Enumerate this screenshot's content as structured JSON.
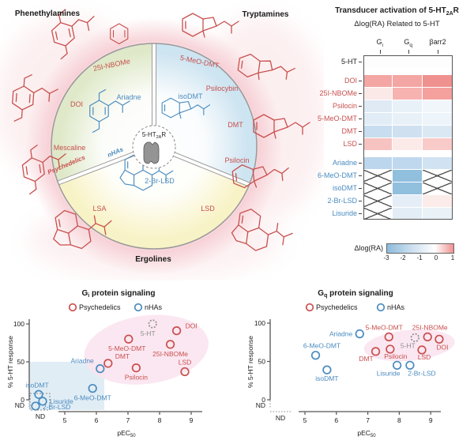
{
  "colors": {
    "psychedelic_red": "#c8504e",
    "nha_blue": "#4a8bbf",
    "reference_gray": "#8f8f8f",
    "sector_green": "#dfe9c9",
    "sector_blue": "#cde4f1",
    "sector_yellow": "#f8f3c6",
    "glow_pink": "#f6cdd3",
    "blob_pink": "#fae3ee",
    "region_blue": "#d9e9f3",
    "heat_negative": "#8cbbdd",
    "heat_positive": "#f0908f"
  },
  "diagram": {
    "headers": {
      "phenethylamines": "Phenethylamines",
      "tryptamines": "Tryptamines",
      "ergolines": "Ergolines"
    },
    "receptor": {
      "prefix": "5-HT",
      "sub": "2A",
      "suffix": "R"
    },
    "rim_labels": {
      "nbome": "25I-NBOMe",
      "doi": "DOI",
      "mescaline": "Mescaline",
      "meodmt": "5-MeO-DMT",
      "psilocybin": "Psilocybin",
      "dmt": "DMT",
      "psilocin": "Psilocin",
      "lsa": "LSA",
      "lsd": "LSD"
    },
    "inner_labels": {
      "ariadne": "Ariadne",
      "isodmt": "isoDMT",
      "brlsd": "2-Br-LSD"
    },
    "divider_labels": {
      "psychedelics": "Psychedelics",
      "nhas": "nHAs"
    }
  },
  "heatmap": {
    "title": {
      "prefix": "Transducer activation of 5-HT",
      "sub": "2A",
      "suffix": "R"
    },
    "subtitle": "Δlog(RA) Related to 5-HT",
    "colorbar_label": "Δlog(RA)"
  },
  "chart_data": [
    {
      "type": "heatmap",
      "title": "Transducer activation of 5-HT2AR",
      "subtitle": "Δlog(RA) Related to 5-HT",
      "columns": [
        {
          "label": "G",
          "sub": "i"
        },
        {
          "label": "G",
          "sub": "q"
        },
        {
          "label": "βarr2",
          "sub": ""
        }
      ],
      "value_note": "null value = not determined (crossed-out cell)",
      "rows": [
        {
          "label": "5-HT",
          "group": "reference",
          "gap_before": false,
          "values": [
            0,
            0,
            0
          ],
          "colors": [
            "#fdfdfd",
            "#fdfdfd",
            "#fdfdfd"
          ]
        },
        {
          "label": "DOI",
          "group": "psychedelic",
          "gap_before": true,
          "values": [
            0.65,
            0.65,
            0.85
          ],
          "colors": [
            "#f3a6a3",
            "#f3a6a3",
            "#ef918e"
          ]
        },
        {
          "label": "25I-NBOMe",
          "group": "psychedelic",
          "gap_before": false,
          "values": [
            0.15,
            0.5,
            0.6
          ],
          "colors": [
            "#fbe9e7",
            "#f6b3b0",
            "#f4a19e"
          ]
        },
        {
          "label": "Psilocin",
          "group": "psychedelic",
          "gap_before": false,
          "values": [
            -0.6,
            -0.4,
            -0.25
          ],
          "colors": [
            "#dfeaf5",
            "#e9f1f8",
            "#f1f6fb"
          ]
        },
        {
          "label": "5-MeO-DMT",
          "group": "psychedelic",
          "gap_before": false,
          "values": [
            -0.55,
            -0.4,
            -0.3
          ],
          "colors": [
            "#e1ecf6",
            "#e9f1f8",
            "#edf4fa"
          ]
        },
        {
          "label": "DMT",
          "group": "psychedelic",
          "gap_before": false,
          "values": [
            -1.05,
            -0.95,
            -0.75
          ],
          "colors": [
            "#c8ddef",
            "#cfe1f1",
            "#dae8f4"
          ]
        },
        {
          "label": "LSD",
          "group": "psychedelic",
          "gap_before": false,
          "values": [
            0.4,
            0.1,
            0.35
          ],
          "colors": [
            "#f7c3c1",
            "#fbeae8",
            "#f8cbc9"
          ]
        },
        {
          "label": "Ariadne",
          "group": "nha",
          "gap_before": true,
          "values": [
            -1.25,
            -1.2,
            -0.85
          ],
          "colors": [
            "#bcd6ed",
            "#c0d8ee",
            "#d1e3f2"
          ]
        },
        {
          "label": "6-MeO-DMT",
          "group": "nha",
          "gap_before": false,
          "values": [
            null,
            -2.0,
            null
          ],
          "colors": [
            null,
            "#91bfde",
            null
          ]
        },
        {
          "label": "isoDMT",
          "group": "nha",
          "gap_before": false,
          "values": [
            null,
            -2.0,
            null
          ],
          "colors": [
            null,
            "#91bfde",
            null
          ]
        },
        {
          "label": "2-Br-LSD",
          "group": "nha",
          "gap_before": false,
          "values": [
            null,
            -0.45,
            0.1
          ],
          "colors": [
            null,
            "#e5eef7",
            "#fbecea"
          ]
        },
        {
          "label": "Lisuride",
          "group": "nha",
          "gap_before": false,
          "values": [
            null,
            -0.5,
            -0.3
          ],
          "colors": [
            null,
            "#e3edf6",
            "#eaf2f8"
          ]
        }
      ],
      "colorbar": {
        "label": "Δlog(RA)",
        "min": -3,
        "max": 1,
        "ticks": [
          "-3",
          "-2",
          "-1",
          "0",
          "1"
        ]
      }
    },
    {
      "type": "scatter",
      "id": "gi",
      "title": {
        "base": "G",
        "sub": "i",
        "rest": " protein signaling"
      },
      "xlabel": {
        "base": "pEC",
        "sub": "50"
      },
      "ylabel": "% 5-HT response",
      "x_ticks": [
        5,
        6,
        7,
        8,
        9
      ],
      "y_ticks": [
        0,
        50,
        100
      ],
      "x_nd_label": "ND",
      "y_nd_label": "ND",
      "legend": [
        {
          "label": "Psychedelics",
          "group": "psychedelic"
        },
        {
          "label": "nHAs",
          "group": "nha"
        }
      ],
      "regions": {
        "psychedelic_blob": {
          "cx": 7.58,
          "cy": 66,
          "rx": 1.98,
          "ry": 45,
          "rot": -8
        },
        "nha_box": {
          "x_max": 6.25,
          "y_max": 50
        }
      },
      "points": [
        {
          "label": "5-HT",
          "group": "reference",
          "x": 7.78,
          "y": 100,
          "lx": -6,
          "ly": 15,
          "anchor": "middle"
        },
        {
          "label": "DOI",
          "group": "psychedelic",
          "x": 8.54,
          "y": 91,
          "lx": 11,
          "ly": -3,
          "anchor": "start"
        },
        {
          "label": "5-MeO-DMT",
          "group": "psychedelic",
          "x": 7.02,
          "y": 80,
          "lx": -2,
          "ly": 15,
          "anchor": "middle"
        },
        {
          "label": "25I-NBOMe",
          "group": "psychedelic",
          "x": 8.34,
          "y": 73,
          "lx": 0,
          "ly": 15,
          "anchor": "middle"
        },
        {
          "label": "DMT",
          "group": "psychedelic",
          "x": 6.37,
          "y": 48,
          "lx": 9,
          "ly": -6,
          "anchor": "start"
        },
        {
          "label": "Psilocin",
          "group": "psychedelic",
          "x": 7.26,
          "y": 42,
          "lx": 0,
          "ly": 15,
          "anchor": "middle"
        },
        {
          "label": "LSD",
          "group": "psychedelic",
          "x": 8.8,
          "y": 37,
          "lx": 0,
          "ly": -9,
          "anchor": "middle"
        },
        {
          "label": "Ariadne",
          "group": "nha",
          "x": 6.12,
          "y": 41,
          "lx": -8,
          "ly": -7,
          "anchor": "end"
        },
        {
          "label": "6-MeO-DMT",
          "group": "nha",
          "x": 5.88,
          "y": 15,
          "lx": 0,
          "ly": 15,
          "anchor": "middle"
        },
        {
          "label": "isoDMT",
          "group": "nha",
          "x": "ND",
          "y": 7,
          "nd_dx": -2,
          "lx": -2,
          "ly": -9,
          "anchor": "middle"
        },
        {
          "label": "Lisuride",
          "group": "nha",
          "x": "ND",
          "y": -2,
          "nd_dx": 3,
          "lx": 9,
          "ly": 3,
          "anchor": "start"
        },
        {
          "label": "2-Br-LSD",
          "group": "nha",
          "x": "ND",
          "y": "ND",
          "nd_dx": -6,
          "lx": 9,
          "ly": 4,
          "anchor": "start"
        }
      ]
    },
    {
      "type": "scatter",
      "id": "gq",
      "title": {
        "base": "G",
        "sub": "q",
        "rest": " protein signaling"
      },
      "xlabel": {
        "base": "pEC",
        "sub": "50"
      },
      "ylabel": "% 5-HT response",
      "x_ticks": [
        5,
        6,
        7,
        8,
        9
      ],
      "y_ticks": [
        0,
        50,
        100
      ],
      "x_nd_label": "ND",
      "y_nd_label": "ND",
      "legend": [
        {
          "label": "Psychedelics",
          "group": "psychedelic"
        },
        {
          "label": "nHAs",
          "group": "nha"
        }
      ],
      "regions": {
        "psychedelic_blob": {
          "cx": 8.32,
          "cy": 71,
          "rx": 1.45,
          "ry": 20,
          "rot": -5
        }
      },
      "points": [
        {
          "label": "5-HT",
          "group": "reference",
          "x": 8.5,
          "y": 81,
          "lx": -9,
          "ly": 13,
          "anchor": "middle"
        },
        {
          "label": "DOI",
          "group": "psychedelic",
          "x": 9.27,
          "y": 79,
          "lx": 4,
          "ly": 13,
          "anchor": "middle"
        },
        {
          "label": "25I-NBOMe",
          "group": "psychedelic",
          "x": 8.9,
          "y": 82,
          "lx": 3,
          "ly": -9,
          "anchor": "middle"
        },
        {
          "label": "5-MeO-DMT",
          "group": "psychedelic",
          "x": 7.67,
          "y": 82,
          "lx": -6,
          "ly": -9,
          "anchor": "middle"
        },
        {
          "label": "Psilocin",
          "group": "psychedelic",
          "x": 7.71,
          "y": 66,
          "lx": 7,
          "ly": 12,
          "anchor": "middle"
        },
        {
          "label": "DMT",
          "group": "psychedelic",
          "x": 7.25,
          "y": 63,
          "lx": -12,
          "ly": 12,
          "anchor": "middle"
        },
        {
          "label": "LSD",
          "group": "psychedelic",
          "x": 8.72,
          "y": 65,
          "lx": 3,
          "ly": 12,
          "anchor": "middle"
        },
        {
          "label": "Ariadne",
          "group": "nha",
          "x": 6.74,
          "y": 86,
          "lx": -9,
          "ly": 3,
          "anchor": "end"
        },
        {
          "label": "6-MeO-DMT",
          "group": "nha",
          "x": 5.34,
          "y": 58,
          "lx": 8,
          "ly": -9,
          "anchor": "middle"
        },
        {
          "label": "isoDMT",
          "group": "nha",
          "x": 5.7,
          "y": 39,
          "lx": 0,
          "ly": 14,
          "anchor": "middle"
        },
        {
          "label": "Lisuride",
          "group": "nha",
          "x": 7.93,
          "y": 45,
          "lx": -11,
          "ly": 13,
          "anchor": "middle"
        },
        {
          "label": "2-Br-LSD",
          "group": "nha",
          "x": 8.34,
          "y": 45,
          "lx": 15,
          "ly": 13,
          "anchor": "middle"
        }
      ]
    }
  ]
}
